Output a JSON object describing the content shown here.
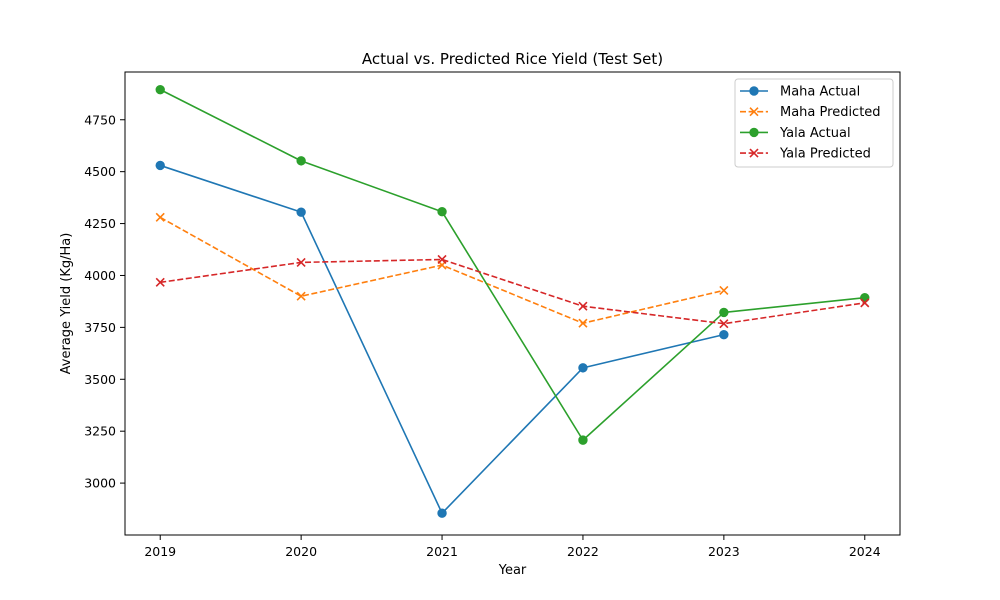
{
  "chart_data": {
    "type": "line",
    "title": "Actual vs. Predicted Rice Yield (Test Set)",
    "xlabel": "Year",
    "ylabel": "Average Yield (Kg/Ha)",
    "x": [
      2019,
      2020,
      2021,
      2022,
      2023,
      2024
    ],
    "xlim": [
      2018.75,
      2024.25
    ],
    "ylim": [
      2750,
      4980
    ],
    "yticks": [
      3000,
      3250,
      3500,
      3750,
      4000,
      4250,
      4500,
      4750
    ],
    "grid": false,
    "legend_position": "top-right",
    "series": [
      {
        "name": "Maha Actual",
        "color": "#1f77b4",
        "linestyle": "solid",
        "marker": "circle",
        "points": [
          [
            2019,
            4530
          ],
          [
            2020,
            4305
          ],
          [
            2021,
            2855
          ],
          [
            2022,
            3555
          ],
          [
            2023,
            3715
          ]
        ]
      },
      {
        "name": "Maha Predicted",
        "color": "#ff7f0e",
        "linestyle": "dashed",
        "marker": "x",
        "points": [
          [
            2019,
            4280
          ],
          [
            2020,
            3900
          ],
          [
            2021,
            4050
          ],
          [
            2022,
            3770
          ],
          [
            2023,
            3928
          ]
        ]
      },
      {
        "name": "Yala Actual",
        "color": "#2ca02c",
        "linestyle": "solid",
        "marker": "circle",
        "points": [
          [
            2019,
            4895
          ],
          [
            2020,
            4552
          ],
          [
            2021,
            4307
          ],
          [
            2022,
            3207
          ],
          [
            2023,
            3822
          ],
          [
            2024,
            3893
          ]
        ]
      },
      {
        "name": "Yala Predicted",
        "color": "#d62728",
        "linestyle": "dashed",
        "marker": "x",
        "points": [
          [
            2019,
            3967
          ],
          [
            2020,
            4063
          ],
          [
            2021,
            4077
          ],
          [
            2022,
            3852
          ],
          [
            2023,
            3768
          ],
          [
            2024,
            3868
          ]
        ]
      }
    ]
  }
}
